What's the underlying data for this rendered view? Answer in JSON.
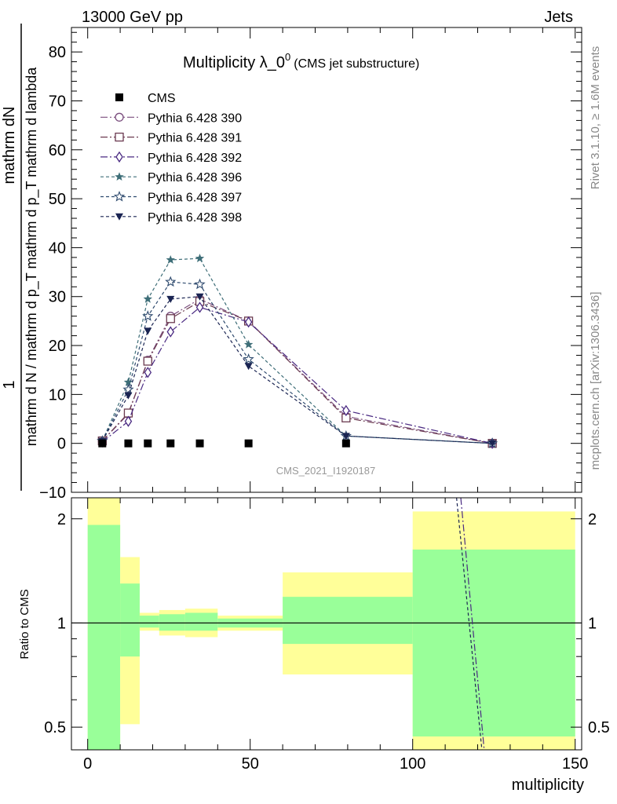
{
  "header": {
    "left": "13000 GeV pp",
    "right": "Jets"
  },
  "right_side": {
    "top": "Rivet 3.1.10, ≥ 1.6M events",
    "bottom": "mcplots.cern.ch [arXiv:1306.3436]"
  },
  "watermark": "CMS_2021_I1920187",
  "chart_data": [
    {
      "type": "line",
      "title_main": "Multiplicity λ_0",
      "title_sup": "0",
      "title_sub": "(CMS jet substructure)",
      "xlabel": "multiplicity",
      "ylabel_top": "1",
      "ylabel_line1": "mathrm dN",
      "ylabel_line2": "mathrm d N / mathrm d p_T mathrm d p_T mathrm d lambda",
      "xlim": [
        -5,
        152
      ],
      "ylim": [
        -10,
        85
      ],
      "yticks": [
        -10,
        0,
        10,
        20,
        30,
        40,
        50,
        60,
        70,
        80
      ],
      "xticks": [
        0,
        50,
        100,
        150
      ],
      "legend_position": "top-left",
      "x": [
        4.5,
        12.5,
        18.5,
        25.5,
        34.5,
        49.5,
        79.5,
        124.5
      ],
      "series": [
        {
          "name": "CMS",
          "color": "#000000",
          "marker": "square-filled",
          "dash": "",
          "values": [
            0.0,
            0.0,
            0.0,
            0.0,
            0.0,
            0.0,
            0.0,
            null
          ]
        },
        {
          "name": "Pythia 6.428 390",
          "color": "#7b4e7e",
          "marker": "circle-open",
          "dash": "9,3,2,3",
          "values": [
            0.5,
            6.0,
            17.0,
            26.0,
            29.5,
            25.0,
            5.5,
            0.0
          ]
        },
        {
          "name": "Pythia 6.428 391",
          "color": "#6b3a50",
          "marker": "square-open",
          "dash": "9,3,2,3",
          "values": [
            0.5,
            6.2,
            16.8,
            25.5,
            29.0,
            25.0,
            5.2,
            0.0
          ]
        },
        {
          "name": "Pythia 6.428 392",
          "color": "#4a2a82",
          "marker": "diamond-open",
          "dash": "9,3,2,3",
          "values": [
            0.3,
            4.5,
            14.5,
            22.8,
            27.8,
            24.8,
            6.7,
            0.0
          ]
        },
        {
          "name": "Pythia 6.428 396",
          "color": "#3e6e78",
          "marker": "star-filled",
          "dash": "4,3",
          "values": [
            0.5,
            12.5,
            29.5,
            37.5,
            37.8,
            20.2,
            1.5,
            0.0
          ]
        },
        {
          "name": "Pythia 6.428 397",
          "color": "#2e4a6e",
          "marker": "star-open",
          "dash": "4,3",
          "values": [
            0.5,
            11.0,
            26.0,
            33.0,
            32.5,
            17.2,
            1.5,
            0.0
          ]
        },
        {
          "name": "Pythia 6.428 398",
          "color": "#1a2452",
          "marker": "triangle-down-filled",
          "dash": "4,3",
          "values": [
            0.5,
            9.8,
            23.0,
            29.5,
            30.0,
            15.8,
            1.5,
            0.0
          ]
        }
      ]
    },
    {
      "type": "area",
      "ylabel": "Ratio to CMS",
      "ylim": [
        0.43,
        2.3
      ],
      "log_scale": true,
      "yticks": [
        0.5,
        1,
        2
      ],
      "reference_line": 1,
      "band_colors": {
        "outer": "#ffff99",
        "inner": "#99ff99"
      },
      "bins": [
        {
          "lo": 0,
          "hi": 10,
          "outer": [
            0.4,
            2.3
          ],
          "inner": [
            0.4,
            1.92
          ]
        },
        {
          "lo": 10,
          "hi": 16,
          "outer": [
            0.51,
            1.55
          ],
          "inner": [
            0.8,
            1.3
          ]
        },
        {
          "lo": 16,
          "hi": 22,
          "outer": [
            0.95,
            1.07
          ],
          "inner": [
            0.97,
            1.05
          ]
        },
        {
          "lo": 22,
          "hi": 30,
          "outer": [
            0.92,
            1.09
          ],
          "inner": [
            0.95,
            1.06
          ]
        },
        {
          "lo": 30,
          "hi": 40,
          "outer": [
            0.91,
            1.1
          ],
          "inner": [
            0.95,
            1.07
          ]
        },
        {
          "lo": 40,
          "hi": 60,
          "outer": [
            0.95,
            1.05
          ],
          "inner": [
            0.97,
            1.03
          ]
        },
        {
          "lo": 60,
          "hi": 100,
          "outer": [
            0.71,
            1.4
          ],
          "inner": [
            0.87,
            1.19
          ]
        },
        {
          "lo": 100,
          "hi": 150,
          "outer": [
            0.4,
            2.1
          ],
          "inner": [
            0.47,
            1.63
          ]
        }
      ],
      "lines": [
        {
          "color": "#4a2a82",
          "dash": "9,3,2,3",
          "x": [
            114.8,
            122.0
          ],
          "y": [
            2.3,
            0.43
          ]
        },
        {
          "color": "#1a2452",
          "dash": "4,3",
          "x": [
            113.5,
            121.3
          ],
          "y": [
            2.3,
            0.43
          ]
        }
      ]
    }
  ]
}
